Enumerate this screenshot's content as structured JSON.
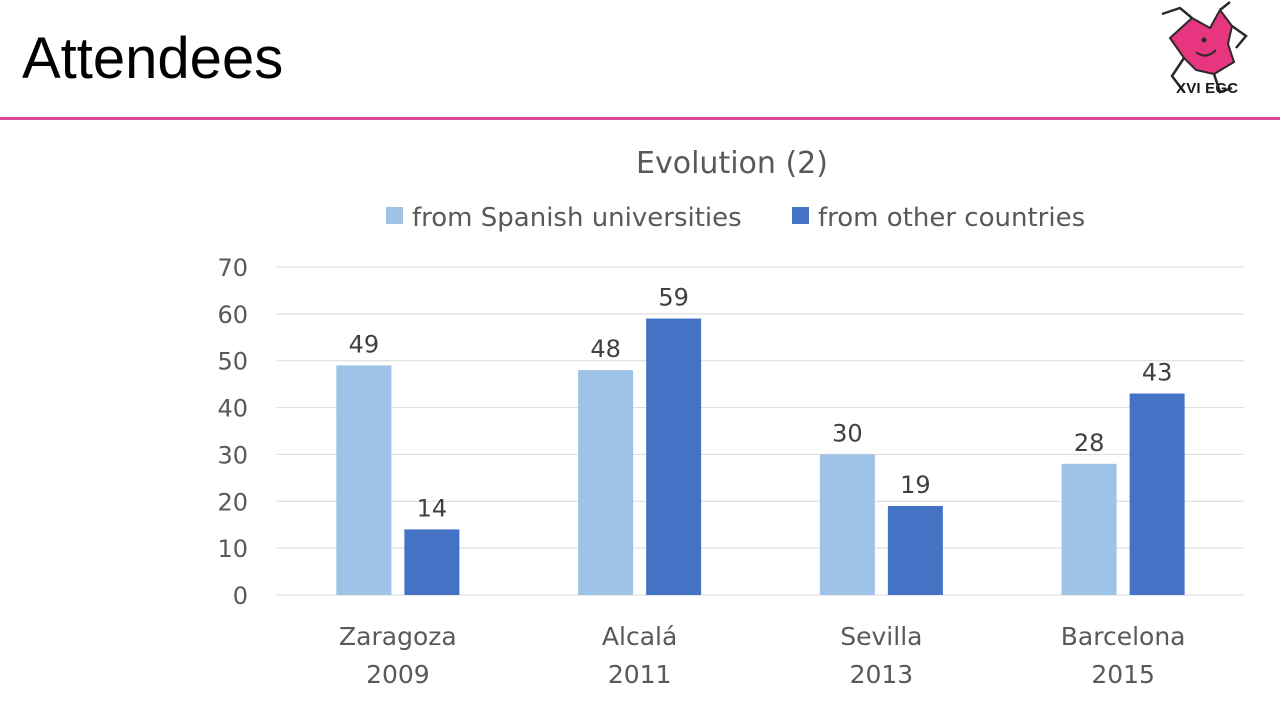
{
  "slide": {
    "title": "Attendees",
    "logo_label": "XVI EGC"
  },
  "colors": {
    "accent_rule": "#d9489a",
    "logo_pink": "#e8357f",
    "series_light": "#9dc3e6",
    "series_dark": "#4472c4",
    "gridline": "#d9d9d9",
    "text_gray": "#595959"
  },
  "chart_data": {
    "type": "bar",
    "title": "Evolution (2)",
    "categories": [
      [
        "Zaragoza",
        "2009"
      ],
      [
        "Alcalá",
        "2011"
      ],
      [
        "Sevilla",
        "2013"
      ],
      [
        "Barcelona",
        "2015"
      ]
    ],
    "series": [
      {
        "name": "from Spanish universities",
        "values": [
          49,
          48,
          30,
          28
        ],
        "color": "#9dc3e6"
      },
      {
        "name": "from other countries",
        "values": [
          14,
          59,
          19,
          43
        ],
        "color": "#4472c4"
      }
    ],
    "ylim": [
      0,
      70
    ],
    "yticks": [
      0,
      10,
      20,
      30,
      40,
      50,
      60,
      70
    ],
    "grid": true,
    "legend": "top",
    "data_labels": true
  }
}
